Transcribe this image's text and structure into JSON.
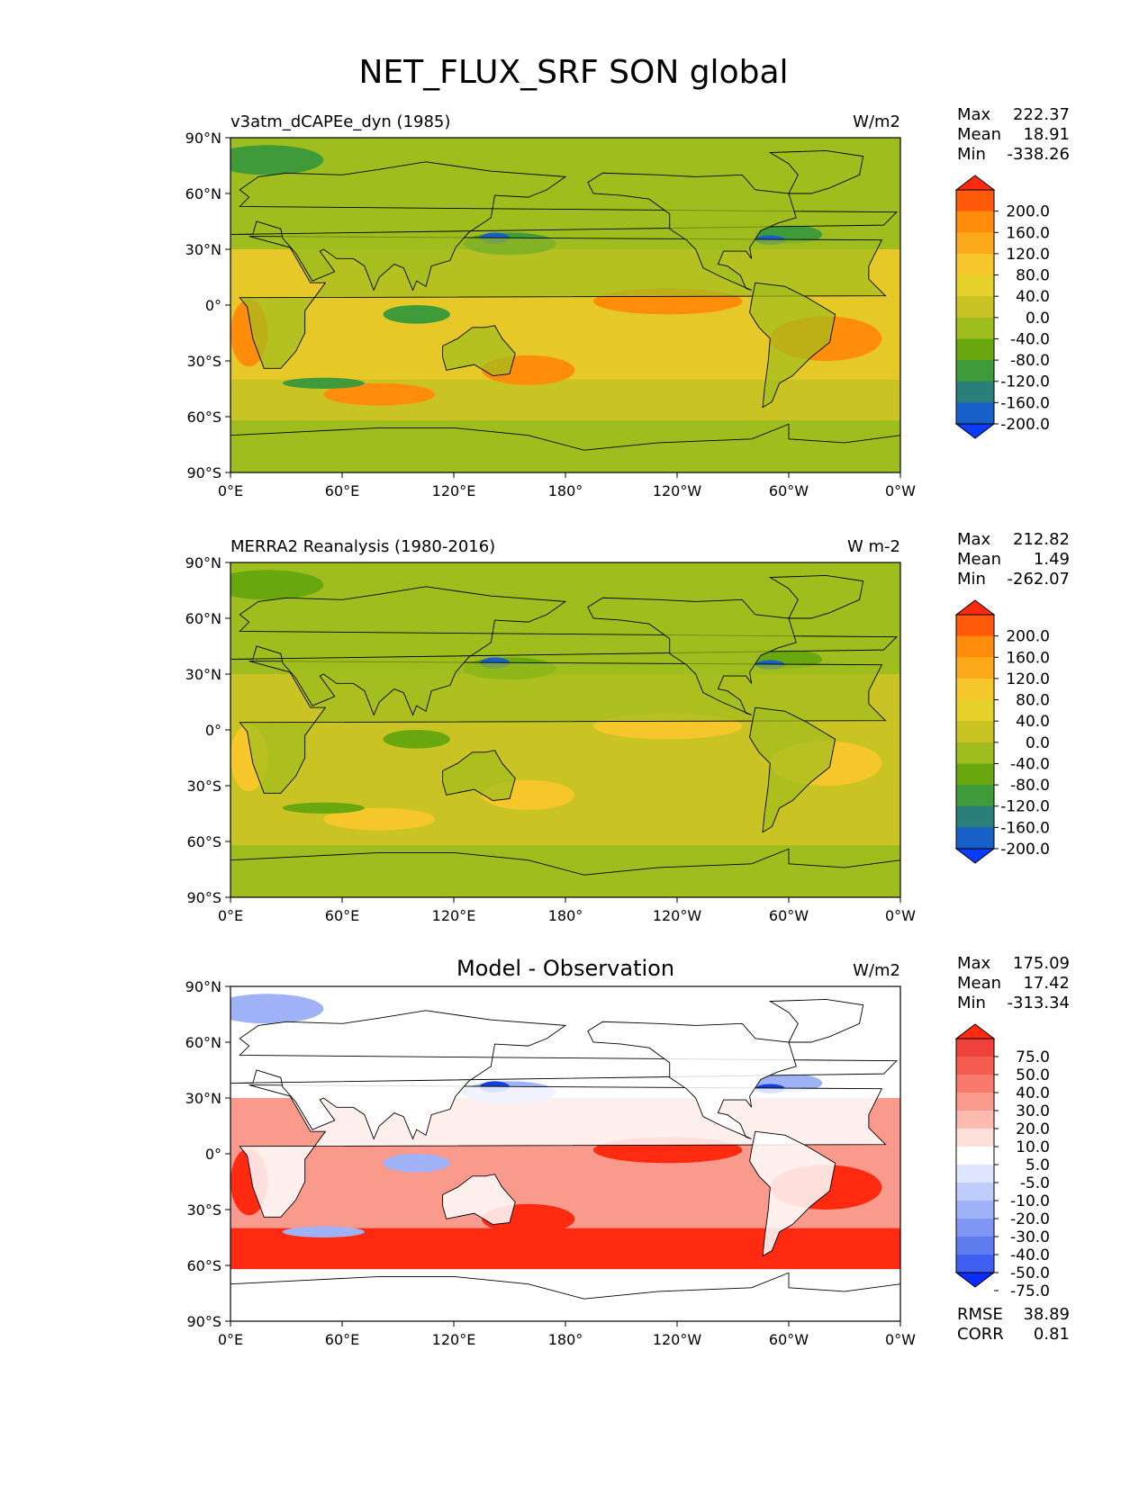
{
  "title": "NET_FLUX_SRF SON global",
  "axes": {
    "y_ticks": [
      "90°N",
      "60°N",
      "30°N",
      "0°",
      "30°S",
      "60°S",
      "90°S"
    ],
    "x_ticks": [
      "0°E",
      "60°E",
      "120°E",
      "180°",
      "120°W",
      "60°W",
      "0°W"
    ]
  },
  "panels": [
    {
      "id": "model",
      "left_title": "v3atm_dCAPEe_dyn (1985)",
      "center_title": "",
      "units": "W/m2",
      "stats": {
        "max_label": "Max",
        "max": "222.37",
        "mean_label": "Mean",
        "mean": "18.91",
        "min_label": "Min",
        "min": "-338.26"
      },
      "colorbar": {
        "labels": [
          "200.0",
          "160.0",
          "120.0",
          "80.0",
          "40.0",
          "0.0",
          "-40.0",
          "-80.0",
          "-120.0",
          "-160.0",
          "-200.0"
        ],
        "colors": [
          "#ff2a10",
          "#ff5a0a",
          "#ff8c0a",
          "#fdaa1a",
          "#f6c72a",
          "#e6d02a",
          "#c9c424",
          "#9fbe1e",
          "#68a80e",
          "#3f9a3a",
          "#2a7f7a",
          "#1760c8",
          "#0a3cff"
        ]
      },
      "field": {
        "base": "#9fbe1e",
        "ocean": "#e6c828",
        "south": "#c9c424",
        "hot": "#ff8c0a",
        "cool": "#3f9a3a",
        "cold": "#1760c8"
      }
    },
    {
      "id": "obs",
      "left_title": "MERRA2 Reanalysis (1980-2016)",
      "center_title": "",
      "units": "W m-2",
      "stats": {
        "max_label": "Max",
        "max": "212.82",
        "mean_label": "Mean",
        "mean": "1.49",
        "min_label": "Min",
        "min": "-262.07"
      },
      "colorbar": {
        "labels": [
          "200.0",
          "160.0",
          "120.0",
          "80.0",
          "40.0",
          "0.0",
          "-40.0",
          "-80.0",
          "-120.0",
          "-160.0",
          "-200.0"
        ],
        "colors": [
          "#ff2a10",
          "#ff5a0a",
          "#ff8c0a",
          "#fdaa1a",
          "#f6c72a",
          "#e6d02a",
          "#c9c424",
          "#9fbe1e",
          "#68a80e",
          "#3f9a3a",
          "#2a7f7a",
          "#1760c8",
          "#0a3cff"
        ]
      },
      "field": {
        "base": "#9fbe1e",
        "ocean": "#c9c424",
        "south": "#c9c424",
        "hot": "#f6c72a",
        "cool": "#68a80e",
        "cold": "#1760c8"
      }
    },
    {
      "id": "diff",
      "left_title": "",
      "center_title": "Model - Observation",
      "units": "W/m2",
      "stats": {
        "max_label": "Max",
        "max": "175.09",
        "mean_label": "Mean",
        "mean": "17.42",
        "min_label": "Min",
        "min": "-313.34"
      },
      "colorbar": {
        "labels": [
          "75.0",
          "50.0",
          "40.0",
          "30.0",
          "20.0",
          "10.0",
          "5.0",
          "-5.0",
          "-10.0",
          "-20.0",
          "-30.0",
          "-40.0",
          "-50.0",
          "-75.0"
        ],
        "colors": [
          "#ff2a10",
          "#f0403a",
          "#f45c50",
          "#f77a6c",
          "#fa9a8c",
          "#fcbab0",
          "#fde0da",
          "#ffffff",
          "#dfe6ff",
          "#bfcdfc",
          "#9fb2f7",
          "#7f97f2",
          "#5f7cee",
          "#3f5ff0",
          "#0a2cff"
        ]
      },
      "field": {
        "base": "#ffffff",
        "ocean": "#fa9a8c",
        "south": "#ff2a10",
        "hot": "#ff2a10",
        "cool": "#9fb2f7",
        "cold": "#1040e0"
      },
      "extra_stats": {
        "rmse_label": "RMSE",
        "rmse": "38.89",
        "corr_label": "CORR",
        "corr": "0.81"
      }
    }
  ]
}
